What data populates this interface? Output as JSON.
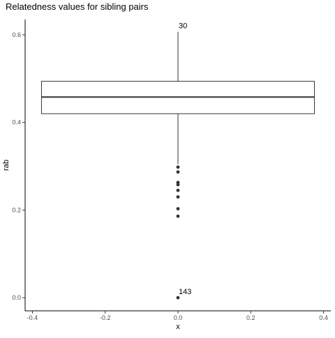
{
  "chart_data": {
    "type": "boxplot",
    "title": "Relatedness values for sibling pairs",
    "xlabel": "x",
    "ylabel": "rab",
    "xlim": [
      -0.42,
      0.42
    ],
    "ylim": [
      -0.03,
      0.635
    ],
    "x_ticks": [
      -0.4,
      -0.2,
      0.0,
      0.2,
      0.4
    ],
    "x_tick_labels": [
      "-0.4",
      "-0.2",
      "0.0",
      "0.2",
      "0.4"
    ],
    "y_ticks": [
      0.0,
      0.2,
      0.4,
      0.6
    ],
    "y_tick_labels": [
      "0.0",
      "0.2",
      "0.4",
      "0.6"
    ],
    "grid": false,
    "box": {
      "x_center": 0.0,
      "half_width": 0.375,
      "q1": 0.42,
      "median": 0.458,
      "q3": 0.494,
      "whisker_low": 0.305,
      "whisker_high": 0.607
    },
    "outliers": [
      0.298,
      0.287,
      0.263,
      0.258,
      0.245,
      0.23,
      0.203,
      0.186,
      0.0
    ],
    "annotations": [
      {
        "label": "30",
        "x": 0.0,
        "y": 0.607
      },
      {
        "label": "143",
        "x": 0.0,
        "y": 0.0
      }
    ]
  }
}
